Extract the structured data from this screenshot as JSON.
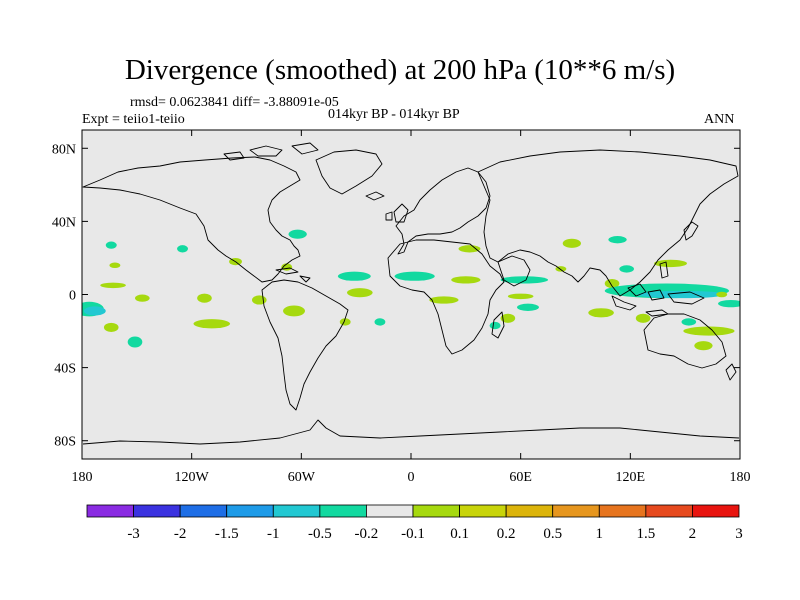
{
  "title": "Divergence (smoothed) at 200 hPa (10**6 m/s)",
  "stats": "rmsd= 0.0623841 diff= -3.88091e-05",
  "experiment": "Expt = teiio1-teiio",
  "period": "014kyr BP - 014kyr BP",
  "season": "ANN",
  "colors": {
    "ocean_land_background": "#e8e8e8",
    "coastline": "#000000",
    "positive_small": "#a6d90f",
    "negative_small": "#12d9a0",
    "negative_mid": "#22c8d2"
  },
  "chart_data": {
    "type": "heatmap",
    "projection": "cylindrical-equidistant",
    "xlim": [
      -180,
      180
    ],
    "ylim": [
      -90,
      90
    ],
    "x_ticks": [
      {
        "value": -180,
        "label": "180"
      },
      {
        "value": -120,
        "label": "120W"
      },
      {
        "value": -60,
        "label": "60W"
      },
      {
        "value": 0,
        "label": "0"
      },
      {
        "value": 60,
        "label": "60E"
      },
      {
        "value": 120,
        "label": "120E"
      },
      {
        "value": 180,
        "label": "180"
      }
    ],
    "y_ticks": [
      {
        "value": 80,
        "label": "80N"
      },
      {
        "value": 40,
        "label": "40N"
      },
      {
        "value": 0,
        "label": "0"
      },
      {
        "value": -40,
        "label": "40S"
      },
      {
        "value": -80,
        "label": "80S"
      }
    ],
    "colorbar": {
      "colors": [
        "#8a2be2",
        "#3b32e0",
        "#1e6ee6",
        "#1e9be8",
        "#22c8d2",
        "#12d9a0",
        "#e8e8e8",
        "#a6d90f",
        "#c8d40a",
        "#dcb40a",
        "#e6961e",
        "#e6741e",
        "#e64a1e",
        "#e8140f"
      ],
      "labels": [
        "-3",
        "-2",
        "-1.5",
        "-1",
        "-0.5",
        "-0.2",
        "-0.1",
        "0.1",
        "0.2",
        "0.5",
        "1",
        "1.5",
        "2",
        "3"
      ]
    },
    "patches": [
      {
        "sign": "neg",
        "level": "-0.2",
        "lon": -164,
        "lat": 27,
        "rlon": 3,
        "rlat": 2
      },
      {
        "sign": "pos",
        "level": "0.1",
        "lon": -162,
        "lat": 16,
        "rlon": 3,
        "rlat": 1.5
      },
      {
        "sign": "pos",
        "level": "0.1",
        "lon": -163,
        "lat": 5,
        "rlon": 7,
        "rlat": 1.5
      },
      {
        "sign": "neg",
        "level": "-0.2",
        "lon": -176,
        "lat": -8,
        "rlon": 8,
        "rlat": 4
      },
      {
        "sign": "neg",
        "level": "-0.5",
        "lon": -173,
        "lat": -9,
        "rlon": 6,
        "rlat": 2.5
      },
      {
        "sign": "pos",
        "level": "0.1",
        "lon": -147,
        "lat": -2,
        "rlon": 4,
        "rlat": 2
      },
      {
        "sign": "pos",
        "level": "0.1",
        "lon": -164,
        "lat": -18,
        "rlon": 4,
        "rlat": 2.5
      },
      {
        "sign": "neg",
        "level": "-0.2",
        "lon": -151,
        "lat": -26,
        "rlon": 4,
        "rlat": 3
      },
      {
        "sign": "pos",
        "level": "0.1",
        "lon": -113,
        "lat": -2,
        "rlon": 4,
        "rlat": 2.5
      },
      {
        "sign": "pos",
        "level": "0.1",
        "lon": -109,
        "lat": -16,
        "rlon": 10,
        "rlat": 2.5
      },
      {
        "sign": "pos",
        "level": "0.1",
        "lon": -83,
        "lat": -3,
        "rlon": 4,
        "rlat": 2.5
      },
      {
        "sign": "pos",
        "level": "0.1",
        "lon": -96,
        "lat": 18,
        "rlon": 3.5,
        "rlat": 2
      },
      {
        "sign": "neg",
        "level": "-0.2",
        "lon": -125,
        "lat": 25,
        "rlon": 3,
        "rlat": 2
      },
      {
        "sign": "pos",
        "level": "0.1",
        "lon": -64,
        "lat": -9,
        "rlon": 6,
        "rlat": 3
      },
      {
        "sign": "neg",
        "level": "-0.2",
        "lon": -62,
        "lat": 33,
        "rlon": 5,
        "rlat": 2.5
      },
      {
        "sign": "pos",
        "level": "0.1",
        "lon": -68,
        "lat": 15,
        "rlon": 3,
        "rlat": 2
      },
      {
        "sign": "neg",
        "level": "-0.2",
        "lon": -31,
        "lat": 10,
        "rlon": 9,
        "rlat": 2.5
      },
      {
        "sign": "neg",
        "level": "-0.2",
        "lon": 2,
        "lat": 10,
        "rlon": 11,
        "rlat": 2.5
      },
      {
        "sign": "pos",
        "level": "0.1",
        "lon": 30,
        "lat": 8,
        "rlon": 8,
        "rlat": 2
      },
      {
        "sign": "pos",
        "level": "0.1",
        "lon": -28,
        "lat": 1,
        "rlon": 7,
        "rlat": 2.5
      },
      {
        "sign": "pos",
        "level": "0.1",
        "lon": 18,
        "lat": -3,
        "rlon": 8,
        "rlat": 2
      },
      {
        "sign": "pos",
        "level": "0.1",
        "lon": 32,
        "lat": 25,
        "rlon": 6,
        "rlat": 2
      },
      {
        "sign": "pos",
        "level": "0.1",
        "lon": -36,
        "lat": -15,
        "rlon": 3,
        "rlat": 2
      },
      {
        "sign": "neg",
        "level": "-0.2",
        "lon": -17,
        "lat": -15,
        "rlon": 3,
        "rlat": 2
      },
      {
        "sign": "neg",
        "level": "-0.2",
        "lon": 62,
        "lat": 8,
        "rlon": 13,
        "rlat": 2
      },
      {
        "sign": "pos",
        "level": "0.1",
        "lon": 60,
        "lat": -1,
        "rlon": 7,
        "rlat": 1.5
      },
      {
        "sign": "neg",
        "level": "-0.2",
        "lon": 64,
        "lat": -7,
        "rlon": 6,
        "rlat": 2
      },
      {
        "sign": "pos",
        "level": "0.1",
        "lon": 53,
        "lat": -13,
        "rlon": 4,
        "rlat": 2.5
      },
      {
        "sign": "neg",
        "level": "-0.2",
        "lon": 46,
        "lat": -17,
        "rlon": 3,
        "rlat": 2
      },
      {
        "sign": "pos",
        "level": "0.1",
        "lon": 88,
        "lat": 28,
        "rlon": 5,
        "rlat": 2.5
      },
      {
        "sign": "pos",
        "level": "0.1",
        "lon": 82,
        "lat": 14,
        "rlon": 3,
        "rlat": 1.5
      },
      {
        "sign": "neg",
        "level": "-0.2",
        "lon": 113,
        "lat": 30,
        "rlon": 5,
        "rlat": 2
      },
      {
        "sign": "pos",
        "level": "0.1",
        "lon": 110,
        "lat": 6,
        "rlon": 4,
        "rlat": 2.5
      },
      {
        "sign": "pos",
        "level": "0.1",
        "lon": 142,
        "lat": 17,
        "rlon": 9,
        "rlat": 2
      },
      {
        "sign": "neg",
        "level": "-0.2",
        "lon": 140,
        "lat": 2,
        "rlon": 34,
        "rlat": 4
      },
      {
        "sign": "neg",
        "level": "-0.5",
        "lon": 148,
        "lat": 0,
        "rlon": 24,
        "rlat": 2
      },
      {
        "sign": "neg",
        "level": "-0.2",
        "lon": 118,
        "lat": 14,
        "rlon": 4,
        "rlat": 2
      },
      {
        "sign": "pos",
        "level": "0.1",
        "lon": 104,
        "lat": -10,
        "rlon": 7,
        "rlat": 2.5
      },
      {
        "sign": "pos",
        "level": "0.1",
        "lon": 127,
        "lat": -13,
        "rlon": 4,
        "rlat": 2.5
      },
      {
        "sign": "neg",
        "level": "-0.2",
        "lon": 152,
        "lat": -15,
        "rlon": 4,
        "rlat": 2
      },
      {
        "sign": "pos",
        "level": "0.1",
        "lon": 163,
        "lat": -20,
        "rlon": 14,
        "rlat": 2.5
      },
      {
        "sign": "neg",
        "level": "-0.2",
        "lon": 175,
        "lat": -5,
        "rlon": 7,
        "rlat": 2
      },
      {
        "sign": "pos",
        "level": "0.1",
        "lon": 160,
        "lat": -28,
        "rlon": 5,
        "rlat": 2.5
      },
      {
        "sign": "pos",
        "level": "0.1",
        "lon": 170,
        "lat": 0,
        "rlon": 3,
        "rlat": 1.5
      }
    ]
  }
}
